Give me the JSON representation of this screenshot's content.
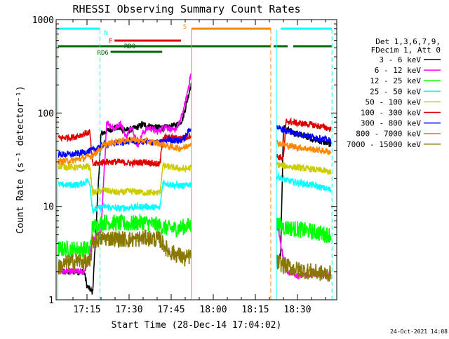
{
  "chart_data": {
    "type": "line",
    "title": "RHESSI Observing Summary Count Rates",
    "xlabel": "Start Time (28-Dec-14 17:04:02)",
    "ylabel": "Count Rate (s⁻¹ detector⁻¹)",
    "yscale": "log",
    "ylim": [
      1,
      1000
    ],
    "xlim_minutes": [
      4.0,
      104.0
    ],
    "x_ticks": [
      {
        "minute": 15,
        "label": "17:15"
      },
      {
        "minute": 30,
        "label": "17:30"
      },
      {
        "minute": 45,
        "label": "17:45"
      },
      {
        "minute": 60,
        "label": "18:00"
      },
      {
        "minute": 75,
        "label": "18:15"
      },
      {
        "minute": 90,
        "label": "18:30"
      }
    ],
    "y_ticks": [
      {
        "value": 1,
        "label": "1"
      },
      {
        "value": 10,
        "label": "10"
      },
      {
        "value": 100,
        "label": "100"
      },
      {
        "value": 1000,
        "label": "1000"
      }
    ],
    "legend_header": [
      "Det 1,3,6,7,9,",
      "FDecim 1, Att 0"
    ],
    "legend_position": "right",
    "timestamp": "24-Oct-2021 14:08",
    "gap_minutes": [
      52.2,
      82.5
    ],
    "series": [
      {
        "name": "3 - 6 keV",
        "color": "#000000",
        "points": [
          [
            4.6,
            2.0
          ],
          [
            14,
            2.0
          ],
          [
            15,
            1.4
          ],
          [
            17,
            1.2
          ],
          [
            20,
            60
          ],
          [
            25,
            70
          ],
          [
            30,
            65
          ],
          [
            35,
            75
          ],
          [
            40,
            70
          ],
          [
            44,
            70
          ],
          [
            47,
            75
          ],
          [
            49,
            85
          ],
          [
            50,
            110
          ],
          [
            52,
            200
          ],
          [
            83,
            2.5
          ],
          [
            84,
            3.0
          ],
          [
            85,
            70
          ],
          [
            88,
            62
          ],
          [
            92,
            58
          ],
          [
            96,
            52
          ],
          [
            100,
            48
          ],
          [
            102,
            46
          ]
        ]
      },
      {
        "name": "6 - 12 keV",
        "color": "#ff00ff",
        "points": [
          [
            4.6,
            2.0
          ],
          [
            14,
            2.0
          ],
          [
            18,
            5
          ],
          [
            20,
            5
          ],
          [
            22,
            80
          ],
          [
            25,
            68
          ],
          [
            27,
            78
          ],
          [
            29,
            55
          ],
          [
            31,
            74
          ],
          [
            33,
            45
          ],
          [
            35,
            62
          ],
          [
            37,
            70
          ],
          [
            40,
            63
          ],
          [
            43,
            72
          ],
          [
            46,
            64
          ],
          [
            48,
            78
          ],
          [
            50,
            125
          ],
          [
            52,
            260
          ],
          [
            83,
            6
          ],
          [
            84,
            4
          ],
          [
            86,
            2
          ],
          [
            90,
            1.8
          ],
          [
            95,
            1.9
          ],
          [
            100,
            1.8
          ],
          [
            102,
            1.9
          ]
        ]
      },
      {
        "name": "12 - 25 keV",
        "color": "#00ff00",
        "points": [
          [
            4.6,
            3.5
          ],
          [
            15,
            3.5
          ],
          [
            16,
            3.4
          ],
          [
            17,
            6
          ],
          [
            21,
            6.8
          ],
          [
            26,
            6.6
          ],
          [
            30,
            6.5
          ],
          [
            35,
            6.8
          ],
          [
            40,
            6.3
          ],
          [
            42,
            6.0
          ],
          [
            44,
            5.8
          ],
          [
            47,
            5.8
          ],
          [
            52,
            6.3
          ],
          [
            83,
            6.5
          ],
          [
            85,
            6.0
          ],
          [
            90,
            5.7
          ],
          [
            95,
            5.4
          ],
          [
            100,
            5.0
          ],
          [
            102,
            5.0
          ]
        ]
      },
      {
        "name": "25 - 50 keV",
        "color": "#00ffff",
        "points": [
          [
            4.6,
            17
          ],
          [
            12,
            17
          ],
          [
            14,
            18
          ],
          [
            15,
            19
          ],
          [
            16,
            18
          ],
          [
            17,
            9
          ],
          [
            21,
            10
          ],
          [
            26,
            9.5
          ],
          [
            31,
            9.8
          ],
          [
            36,
            10
          ],
          [
            41,
            9.6
          ],
          [
            42,
            18
          ],
          [
            46,
            17
          ],
          [
            50,
            16.5
          ],
          [
            52,
            17.5
          ],
          [
            83,
            21
          ],
          [
            86,
            19
          ],
          [
            90,
            18
          ],
          [
            95,
            17
          ],
          [
            100,
            15.5
          ],
          [
            102,
            15
          ]
        ]
      },
      {
        "name": "50 - 100 keV",
        "color": "#cccc00",
        "points": [
          [
            4.6,
            27
          ],
          [
            12,
            26
          ],
          [
            15,
            27
          ],
          [
            16,
            26
          ],
          [
            17,
            14
          ],
          [
            21,
            15
          ],
          [
            26,
            14
          ],
          [
            31,
            14.5
          ],
          [
            36,
            14
          ],
          [
            41,
            14
          ],
          [
            42,
            27
          ],
          [
            46,
            26
          ],
          [
            50,
            25
          ],
          [
            52,
            26
          ],
          [
            83,
            28
          ],
          [
            86,
            27
          ],
          [
            90,
            26
          ],
          [
            95,
            25
          ],
          [
            100,
            24
          ],
          [
            102,
            23
          ]
        ]
      },
      {
        "name": "100 - 300 keV",
        "color": "#dd0000",
        "points": [
          [
            4.6,
            54
          ],
          [
            10,
            55
          ],
          [
            14,
            60
          ],
          [
            16,
            62
          ],
          [
            17,
            28
          ],
          [
            21,
            30
          ],
          [
            26,
            30
          ],
          [
            31,
            29
          ],
          [
            36,
            30
          ],
          [
            41,
            28
          ],
          [
            42,
            55
          ],
          [
            46,
            54
          ],
          [
            50,
            54
          ],
          [
            52,
            58
          ],
          [
            83,
            34
          ],
          [
            85,
            33
          ],
          [
            86,
            82
          ],
          [
            90,
            78
          ],
          [
            95,
            75
          ],
          [
            100,
            70
          ],
          [
            102,
            67
          ]
        ]
      },
      {
        "name": "300 - 800 keV",
        "color": "#0000ff",
        "points": [
          [
            4.6,
            36
          ],
          [
            10,
            36
          ],
          [
            14,
            38
          ],
          [
            17,
            40
          ],
          [
            21,
            46
          ],
          [
            26,
            48
          ],
          [
            31,
            50
          ],
          [
            36,
            49
          ],
          [
            41,
            48
          ],
          [
            44,
            52
          ],
          [
            48,
            50
          ],
          [
            50,
            55
          ],
          [
            52,
            70
          ],
          [
            83,
            70
          ],
          [
            86,
            64
          ],
          [
            90,
            60
          ],
          [
            95,
            56
          ],
          [
            100,
            52
          ],
          [
            102,
            50
          ]
        ]
      },
      {
        "name": "800 - 7000 keV",
        "color": "#ff8800",
        "points": [
          [
            4.6,
            30
          ],
          [
            10,
            31
          ],
          [
            14,
            33
          ],
          [
            17,
            35
          ],
          [
            21,
            45
          ],
          [
            26,
            50
          ],
          [
            31,
            52
          ],
          [
            36,
            50
          ],
          [
            41,
            47
          ],
          [
            44,
            44
          ],
          [
            48,
            42
          ],
          [
            50,
            43
          ],
          [
            52,
            48
          ],
          [
            83,
            48
          ],
          [
            86,
            45
          ],
          [
            90,
            43
          ],
          [
            95,
            41
          ],
          [
            100,
            39
          ],
          [
            102,
            38
          ]
        ]
      },
      {
        "name": "7000 - 15000 keV",
        "color": "#887700",
        "points": [
          [
            4.6,
            2.2
          ],
          [
            8,
            2.5
          ],
          [
            12,
            2.6
          ],
          [
            15,
            2.5
          ],
          [
            16,
            2.4
          ],
          [
            17,
            4.2
          ],
          [
            21,
            4.6
          ],
          [
            26,
            4.5
          ],
          [
            31,
            4.4
          ],
          [
            36,
            4.6
          ],
          [
            41,
            4.4
          ],
          [
            44,
            3.3
          ],
          [
            48,
            3.0
          ],
          [
            50,
            2.7
          ],
          [
            52,
            3.0
          ],
          [
            83,
            2.5
          ],
          [
            86,
            2.3
          ],
          [
            90,
            2.1
          ],
          [
            95,
            2.0
          ],
          [
            100,
            1.9
          ],
          [
            102,
            1.9
          ]
        ]
      }
    ],
    "flag_bars": [
      {
        "label": "N",
        "label_color": "#00ffff",
        "color": "#00ffff",
        "segments": [
          [
            4.6,
            19.6
          ],
          [
            84.0,
            102.3
          ]
        ],
        "level": 0
      },
      {
        "label": "S",
        "label_color": "#ff8800",
        "color": "#ff8800",
        "segments": [
          [
            52.2,
            80.5
          ]
        ],
        "level": 0
      },
      {
        "label": "F",
        "label_color": "#dd0000",
        "color": "#dd0000",
        "segments": [
          [
            24.8,
            48.5
          ]
        ],
        "level": 1
      },
      {
        "label": "RD0",
        "label_color": "#006600",
        "color": "#006600",
        "segments": [
          [
            4.6,
            80.5
          ],
          [
            81.5,
            86.5
          ],
          [
            88.5,
            102.3
          ]
        ],
        "level": 2
      },
      {
        "label": "RD6",
        "label_color": "#006600",
        "color": "#006600",
        "segments": [
          [
            23.4,
            41.8
          ]
        ],
        "level": 3
      }
    ],
    "vlines": [
      {
        "minute": 4.6,
        "color": "#00ffff",
        "style": "solid"
      },
      {
        "minute": 19.6,
        "color": "#00ffff",
        "style": "dashed"
      },
      {
        "minute": 52.2,
        "color": "#ff8800",
        "style": "solid"
      },
      {
        "minute": 80.5,
        "color": "#ff8800",
        "style": "dashed"
      },
      {
        "minute": 82.5,
        "color": "#00ffff",
        "style": "solid"
      },
      {
        "minute": 102.3,
        "color": "#00ffff",
        "style": "dashed"
      }
    ]
  }
}
